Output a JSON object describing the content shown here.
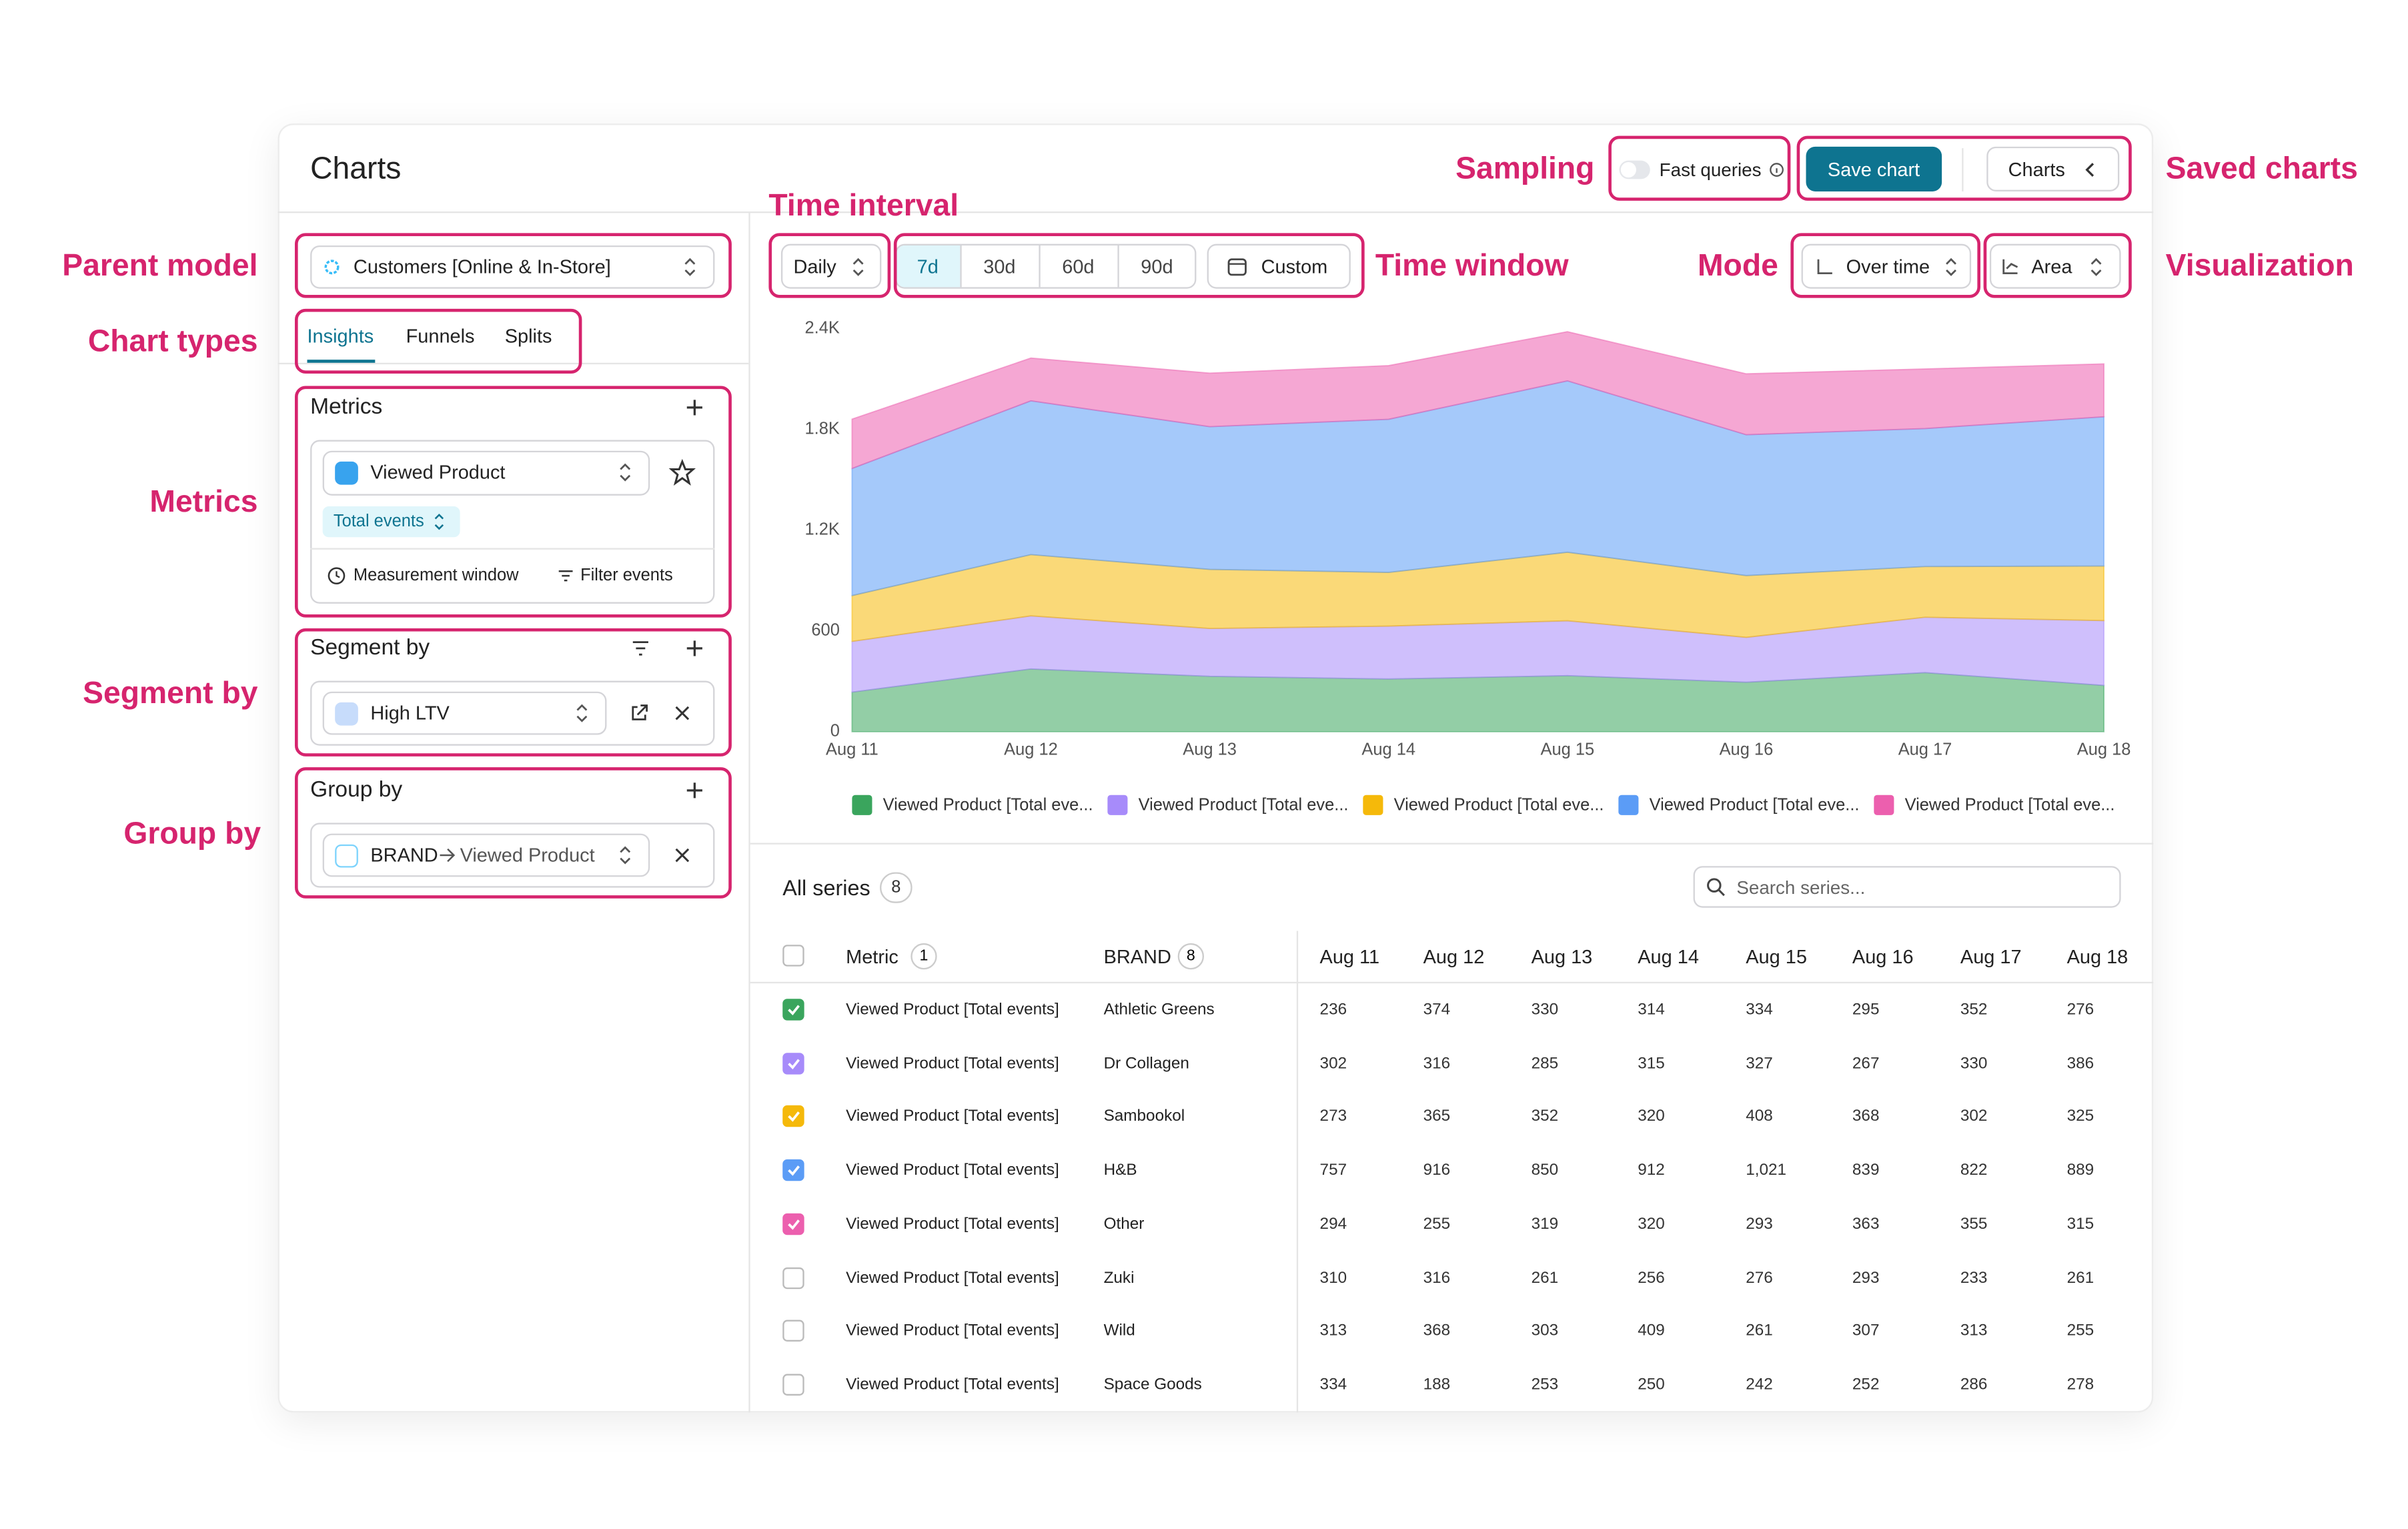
{
  "header": {
    "title": "Charts",
    "fast_queries": "Fast queries",
    "save_chart": "Save chart",
    "charts_button": "Charts"
  },
  "annotations": {
    "sampling": "Sampling",
    "saved_charts": "Saved charts",
    "time_interval": "Time interval",
    "parent_model": "Parent model",
    "time_window": "Time window",
    "mode": "Mode",
    "visualization": "Visualization",
    "chart_types": "Chart types",
    "metrics": "Metrics",
    "segment_by": "Segment by",
    "group_by": "Group by"
  },
  "sidebar": {
    "parent_model": "Customers [Online & In-Store]",
    "tabs": [
      "Insights",
      "Funnels",
      "Splits"
    ],
    "metrics": {
      "title": "Metrics",
      "event": "Viewed Product",
      "aggregation": "Total events",
      "measurement_window": "Measurement window",
      "filter_events": "Filter events"
    },
    "segment": {
      "title": "Segment by",
      "value": "High LTV"
    },
    "group": {
      "title": "Group by",
      "brand": "BRAND",
      "event": "Viewed Product"
    }
  },
  "controls": {
    "interval": "Daily",
    "windows": [
      "7d",
      "30d",
      "60d",
      "90d"
    ],
    "custom": "Custom",
    "mode": "Over time",
    "visualization": "Area"
  },
  "chart_data": {
    "type": "area",
    "stacked": true,
    "grid": false,
    "categories": [
      "Aug 11",
      "Aug 12",
      "Aug 13",
      "Aug 14",
      "Aug 15",
      "Aug 16",
      "Aug 17",
      "Aug 18"
    ],
    "ylim": [
      0,
      2400
    ],
    "yticks": [
      0,
      600,
      {
        "value": 1200,
        "label": "1.2K"
      },
      {
        "value": 1800,
        "label": "1.8K"
      },
      {
        "value": 2400,
        "label": "2.4K"
      }
    ],
    "series": [
      {
        "name": "Viewed Product [Total eve...",
        "color": "#3aa55d",
        "values": [
          236,
          374,
          330,
          314,
          334,
          295,
          352,
          276
        ]
      },
      {
        "name": "Viewed Product [Total eve...",
        "color": "#a78bfa",
        "values": [
          302,
          316,
          285,
          315,
          327,
          267,
          330,
          386
        ]
      },
      {
        "name": "Viewed Product [Total eve...",
        "color": "#f5b90a",
        "values": [
          273,
          365,
          352,
          320,
          408,
          368,
          302,
          325
        ]
      },
      {
        "name": "Viewed Product [Total eve...",
        "color": "#5b9cf6",
        "values": [
          757,
          916,
          850,
          912,
          1021,
          839,
          822,
          889
        ]
      },
      {
        "name": "Viewed Product [Total eve...",
        "color": "#ec5fae",
        "values": [
          294,
          255,
          319,
          320,
          293,
          363,
          355,
          315
        ]
      }
    ]
  },
  "table": {
    "title": "All series",
    "count": "8",
    "search_placeholder": "Search series...",
    "columns": {
      "metric": "Metric",
      "metric_count": "1",
      "brand": "BRAND",
      "brand_count": "8"
    },
    "rows": [
      {
        "metric": "Viewed Product [Total events]",
        "brand": "Athletic Greens",
        "checked": true,
        "color": "#3aa55d",
        "cells": [
          "236",
          "374",
          "330",
          "314",
          "334",
          "295",
          "352",
          "276"
        ]
      },
      {
        "metric": "Viewed Product [Total events]",
        "brand": "Dr Collagen",
        "checked": true,
        "color": "#a78bfa",
        "cells": [
          "302",
          "316",
          "285",
          "315",
          "327",
          "267",
          "330",
          "386"
        ]
      },
      {
        "metric": "Viewed Product [Total events]",
        "brand": "Sambookol",
        "checked": true,
        "color": "#f5b90a",
        "cells": [
          "273",
          "365",
          "352",
          "320",
          "408",
          "368",
          "302",
          "325"
        ]
      },
      {
        "metric": "Viewed Product [Total events]",
        "brand": "H&B",
        "checked": true,
        "color": "#5b9cf6",
        "cells": [
          "757",
          "916",
          "850",
          "912",
          "1,021",
          "839",
          "822",
          "889"
        ]
      },
      {
        "metric": "Viewed Product [Total events]",
        "brand": "Other",
        "checked": true,
        "color": "#ec5fae",
        "cells": [
          "294",
          "255",
          "319",
          "320",
          "293",
          "363",
          "355",
          "315"
        ]
      },
      {
        "metric": "Viewed Product [Total events]",
        "brand": "Zuki",
        "checked": false,
        "color": "#9ca3af",
        "cells": [
          "310",
          "316",
          "261",
          "256",
          "276",
          "293",
          "233",
          "261"
        ]
      },
      {
        "metric": "Viewed Product [Total events]",
        "brand": "Wild",
        "checked": false,
        "color": "#9ca3af",
        "cells": [
          "313",
          "368",
          "303",
          "409",
          "261",
          "307",
          "313",
          "255"
        ]
      },
      {
        "metric": "Viewed Product [Total events]",
        "brand": "Space Goods",
        "checked": false,
        "color": "#9ca3af",
        "cells": [
          "334",
          "188",
          "253",
          "250",
          "242",
          "252",
          "286",
          "278"
        ]
      }
    ]
  }
}
